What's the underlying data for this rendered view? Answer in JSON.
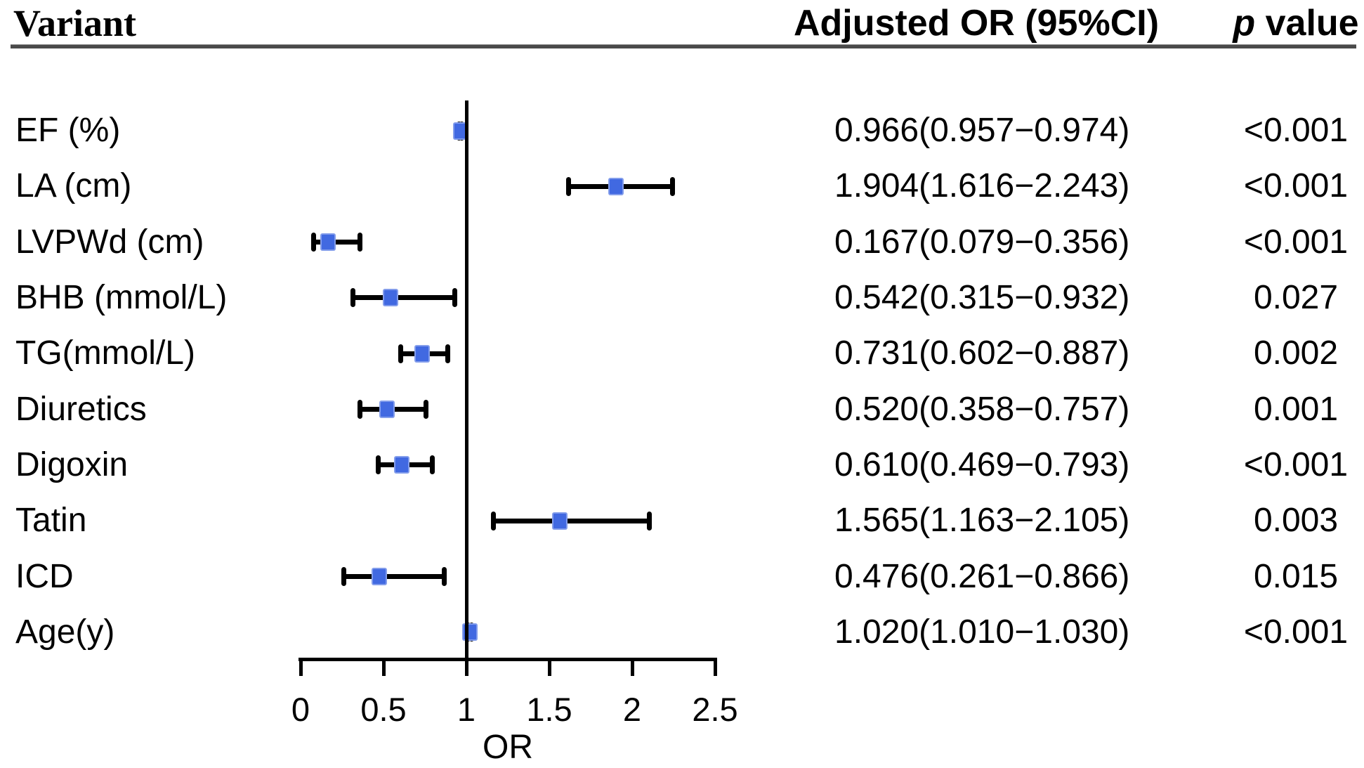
{
  "headers": {
    "variant": "Variant",
    "adjusted_or": "Adjusted OR (95%CI)",
    "p_italic": "p",
    "p_rest": " value"
  },
  "chart_data": {
    "type": "scatter",
    "subtype": "forest-plot",
    "title": "",
    "xlabel": "OR",
    "xlim": [
      0,
      2.5
    ],
    "x_ticks": [
      0,
      0.5,
      1,
      1.5,
      2,
      2.5
    ],
    "x_tick_labels": [
      "0",
      "0.5",
      "1",
      "1.5",
      "2",
      "2.5"
    ],
    "reference_line_x": 1,
    "marker_color": "#4169e1",
    "grid": false,
    "rows": [
      {
        "label": "EF (%)",
        "or": 0.966,
        "ci_low": 0.957,
        "ci_high": 0.974,
        "or_ci_text": "0.966(0.957−0.974)",
        "p_value": "<0.001"
      },
      {
        "label": "LA (cm)",
        "or": 1.904,
        "ci_low": 1.616,
        "ci_high": 2.243,
        "or_ci_text": "1.904(1.616−2.243)",
        "p_value": "<0.001"
      },
      {
        "label": "LVPWd (cm)",
        "or": 0.167,
        "ci_low": 0.079,
        "ci_high": 0.356,
        "or_ci_text": "0.167(0.079−0.356)",
        "p_value": "<0.001"
      },
      {
        "label": "BHB (mmol/L)",
        "or": 0.542,
        "ci_low": 0.315,
        "ci_high": 0.932,
        "or_ci_text": "0.542(0.315−0.932)",
        "p_value": "0.027"
      },
      {
        "label": "TG(mmol/L)",
        "or": 0.731,
        "ci_low": 0.602,
        "ci_high": 0.887,
        "or_ci_text": "0.731(0.602−0.887)",
        "p_value": "0.002"
      },
      {
        "label": "Diuretics",
        "or": 0.52,
        "ci_low": 0.358,
        "ci_high": 0.757,
        "or_ci_text": "0.520(0.358−0.757)",
        "p_value": "0.001"
      },
      {
        "label": "Digoxin",
        "or": 0.61,
        "ci_low": 0.469,
        "ci_high": 0.793,
        "or_ci_text": "0.610(0.469−0.793)",
        "p_value": "<0.001"
      },
      {
        "label": "Tatin",
        "or": 1.565,
        "ci_low": 1.163,
        "ci_high": 2.105,
        "or_ci_text": "1.565(1.163−2.105)",
        "p_value": "0.003"
      },
      {
        "label": "ICD",
        "or": 0.476,
        "ci_low": 0.261,
        "ci_high": 0.866,
        "or_ci_text": "0.476(0.261−0.866)",
        "p_value": "0.015"
      },
      {
        "label": "Age(y)",
        "or": 1.02,
        "ci_low": 1.01,
        "ci_high": 1.03,
        "or_ci_text": "1.020(1.010−1.030)",
        "p_value": "<0.001"
      }
    ]
  }
}
